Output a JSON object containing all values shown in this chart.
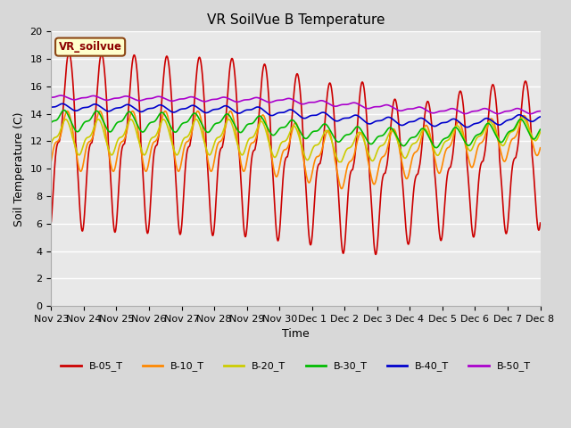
{
  "title": "VR SoilVue B Temperature",
  "ylabel": "Soil Temperature (C)",
  "xlabel": "Time",
  "legend_label": "VR_soilvue",
  "ylim": [
    0,
    20
  ],
  "yticks": [
    0,
    2,
    4,
    6,
    8,
    10,
    12,
    14,
    16,
    18,
    20
  ],
  "fig_bg_color": "#d8d8d8",
  "plot_bg_color": "#e8e8e8",
  "grid_color": "#ffffff",
  "series_order": [
    "B-05_T",
    "B-10_T",
    "B-20_T",
    "B-30_T",
    "B-40_T",
    "B-50_T"
  ],
  "series_colors": {
    "B-05_T": "#cc0000",
    "B-10_T": "#ff8800",
    "B-20_T": "#cccc00",
    "B-30_T": "#00bb00",
    "B-40_T": "#0000cc",
    "B-50_T": "#aa00cc"
  },
  "days": [
    "Nov 23",
    "Nov 24",
    "Nov 25",
    "Nov 26",
    "Nov 27",
    "Nov 28",
    "Nov 29",
    "Nov 30",
    "Dec 1",
    "Dec 2",
    "Dec 3",
    "Dec 4",
    "Dec 5",
    "Dec 6",
    "Dec 7",
    "Dec 8"
  ],
  "tick_fontsize": 8,
  "label_fontsize": 9,
  "title_fontsize": 11
}
